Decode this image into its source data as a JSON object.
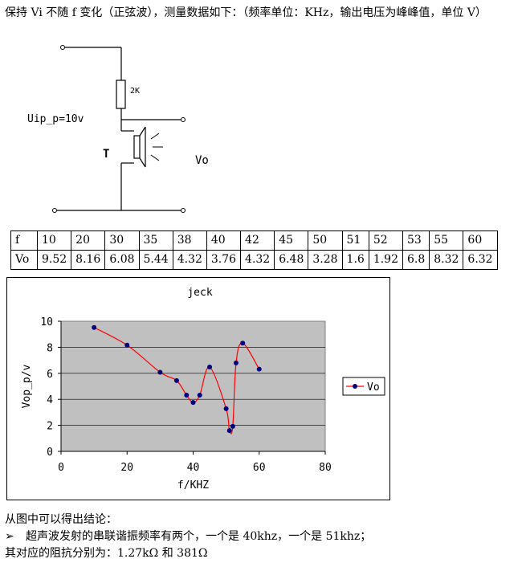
{
  "intro_text": "保持 Vi 不随 f 变化（正弦波），测量数据如下：（频率单位：KHz，输出电压为峰峰值，单位 V）",
  "circuit": {
    "resistor_label": "2K",
    "input_label": "Uip_p=10v",
    "transducer_label": "T",
    "output_label": "Vo"
  },
  "table": {
    "row_labels": [
      "f",
      "Vo"
    ],
    "f": [
      "10",
      "20",
      "30",
      "35",
      "38",
      "40",
      "42",
      "45",
      "50",
      "51",
      "52",
      "53",
      "55",
      "60"
    ],
    "vo": [
      "9.52",
      "8.16",
      "6.08",
      "5.44",
      "4.32",
      "3.76",
      "4.32",
      "6.48",
      "3.28",
      "1.6",
      "1.92",
      "6.8",
      "8.32",
      "6.32"
    ]
  },
  "chart_data": {
    "type": "line",
    "title": "jeck",
    "xlabel": "f/KHZ",
    "ylabel": "Vop_p/v",
    "xlim": [
      0,
      80
    ],
    "ylim": [
      0,
      10
    ],
    "xticks": [
      0,
      20,
      40,
      60,
      80
    ],
    "yticks": [
      0,
      2,
      4,
      6,
      8,
      10
    ],
    "grid": true,
    "legend_position": "right",
    "series": [
      {
        "name": "Vo",
        "color": "#ff0000",
        "marker_color": "#000080",
        "x": [
          10,
          20,
          30,
          35,
          38,
          40,
          42,
          45,
          50,
          51,
          52,
          53,
          55,
          60
        ],
        "y": [
          9.52,
          8.16,
          6.08,
          5.44,
          4.32,
          3.76,
          4.32,
          6.48,
          3.28,
          1.6,
          1.92,
          6.8,
          8.32,
          6.32
        ]
      }
    ],
    "plot_background": "#c0c0c0"
  },
  "conclusion": {
    "line1": "从图中可以得出结论：",
    "bullet_symbol": "➢",
    "line2": "超声波发射的串联谐振频率有两个，一个是 40khz，一个是 51khz；",
    "line3": "其对应的阻抗分别为：1.27kΩ 和 381Ω"
  }
}
